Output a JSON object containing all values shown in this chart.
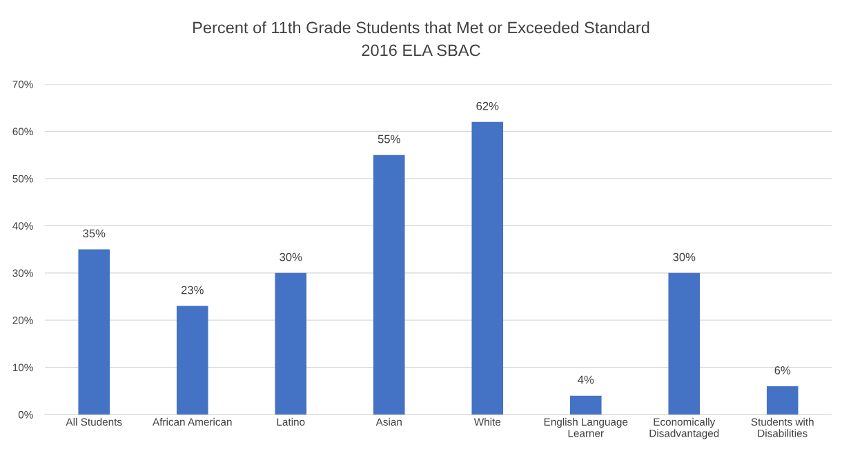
{
  "chart_data": {
    "type": "bar",
    "title": "Percent of 11th Grade Students that Met or Exceeded Standard",
    "subtitle": "2016 ELA SBAC",
    "categories": [
      "All Students",
      "African American",
      "Latino",
      "Asian",
      "White",
      "English Language\nLearner",
      "Economically\nDisadvantaged",
      "Students with\nDisabilities"
    ],
    "values": [
      35,
      23,
      30,
      55,
      62,
      4,
      30,
      6
    ],
    "value_labels": [
      "35%",
      "23%",
      "30%",
      "55%",
      "62%",
      "4%",
      "30%",
      "6%"
    ],
    "color": "#4472c4",
    "ylim": [
      0,
      70
    ],
    "yticks": [
      {
        "value": 0,
        "label": "0%"
      },
      {
        "value": 10,
        "label": "10%"
      },
      {
        "value": 20,
        "label": "20%"
      },
      {
        "value": 30,
        "label": "30%"
      },
      {
        "value": 40,
        "label": "40%"
      },
      {
        "value": 50,
        "label": "50%"
      },
      {
        "value": 60,
        "label": "60%"
      },
      {
        "value": 70,
        "label": "70%"
      }
    ],
    "grid": "y"
  }
}
